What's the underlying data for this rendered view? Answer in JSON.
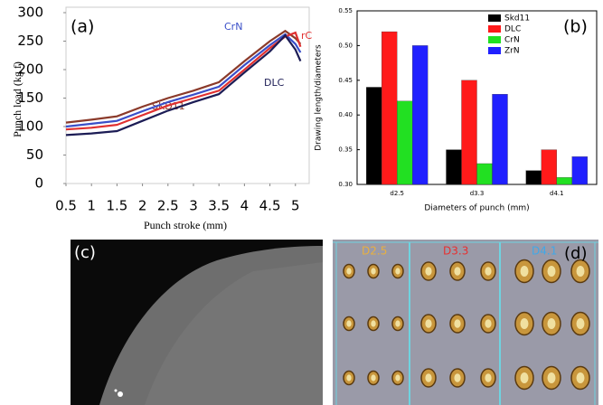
{
  "chart_data": [
    {
      "type": "line",
      "title": "(a)",
      "x_label": "Punch stroke (mm)",
      "y_label": "Punch load (kg f)",
      "x": [
        0.5,
        1,
        1.5,
        2,
        2.5,
        3,
        3.5,
        4,
        4.5,
        4.8,
        5,
        5.1
      ],
      "series": [
        {
          "name": "SKD11",
          "color": "#8b3a2a",
          "values": [
            107,
            112,
            118,
            135,
            150,
            163,
            178,
            215,
            250,
            268,
            255,
            245
          ]
        },
        {
          "name": "CrN",
          "color": "#3a4fc8",
          "values": [
            100,
            105,
            110,
            127,
            143,
            156,
            170,
            208,
            243,
            262,
            245,
            230
          ]
        },
        {
          "name": "rC",
          "color": "#e03030",
          "values": [
            95,
            98,
            103,
            120,
            137,
            150,
            163,
            200,
            238,
            258,
            265,
            240
          ]
        },
        {
          "name": "DLC",
          "color": "#1c1c55",
          "values": [
            85,
            88,
            92,
            110,
            128,
            143,
            157,
            195,
            232,
            260,
            235,
            215
          ]
        }
      ],
      "xlim": [
        0.5,
        5.27
      ],
      "xticks": [
        0.5,
        1,
        1.5,
        2,
        2.5,
        3,
        3.5,
        4,
        4.5,
        5
      ],
      "ylim": [
        0,
        300
      ],
      "yticks": [
        0,
        50,
        100,
        150,
        200,
        250,
        300
      ]
    },
    {
      "type": "bar",
      "title": "(b)",
      "x_label": "Diameters of punch (mm)",
      "y_label": "Drawing length/diameters",
      "categories": [
        "d2.5",
        "d3.3",
        "d4.1"
      ],
      "series": [
        {
          "name": "Skd11",
          "color": "#000000",
          "values": [
            0.44,
            0.35,
            0.32
          ]
        },
        {
          "name": "DLC",
          "color": "#ff1a1a",
          "values": [
            0.52,
            0.45,
            0.35
          ]
        },
        {
          "name": "CrN",
          "color": "#22e022",
          "values": [
            0.42,
            0.33,
            0.31
          ]
        },
        {
          "name": "ZrN",
          "color": "#2020ff",
          "values": [
            0.5,
            0.43,
            0.34
          ]
        }
      ],
      "ylim": [
        0.3,
        0.55
      ],
      "yticks": [
        {
          "value": 0.3,
          "label": "0.30"
        },
        0.35,
        {
          "value": 0.4,
          "label": "0.40"
        },
        0.45,
        {
          "value": 0.5,
          "label": "0.50"
        },
        0.55
      ],
      "legend": "top-right"
    }
  ],
  "panels": {
    "c": {
      "label": "(c)"
    },
    "d": {
      "label": "(d)",
      "columns": [
        "D2.5",
        "D3.3",
        "D4.1"
      ]
    }
  }
}
